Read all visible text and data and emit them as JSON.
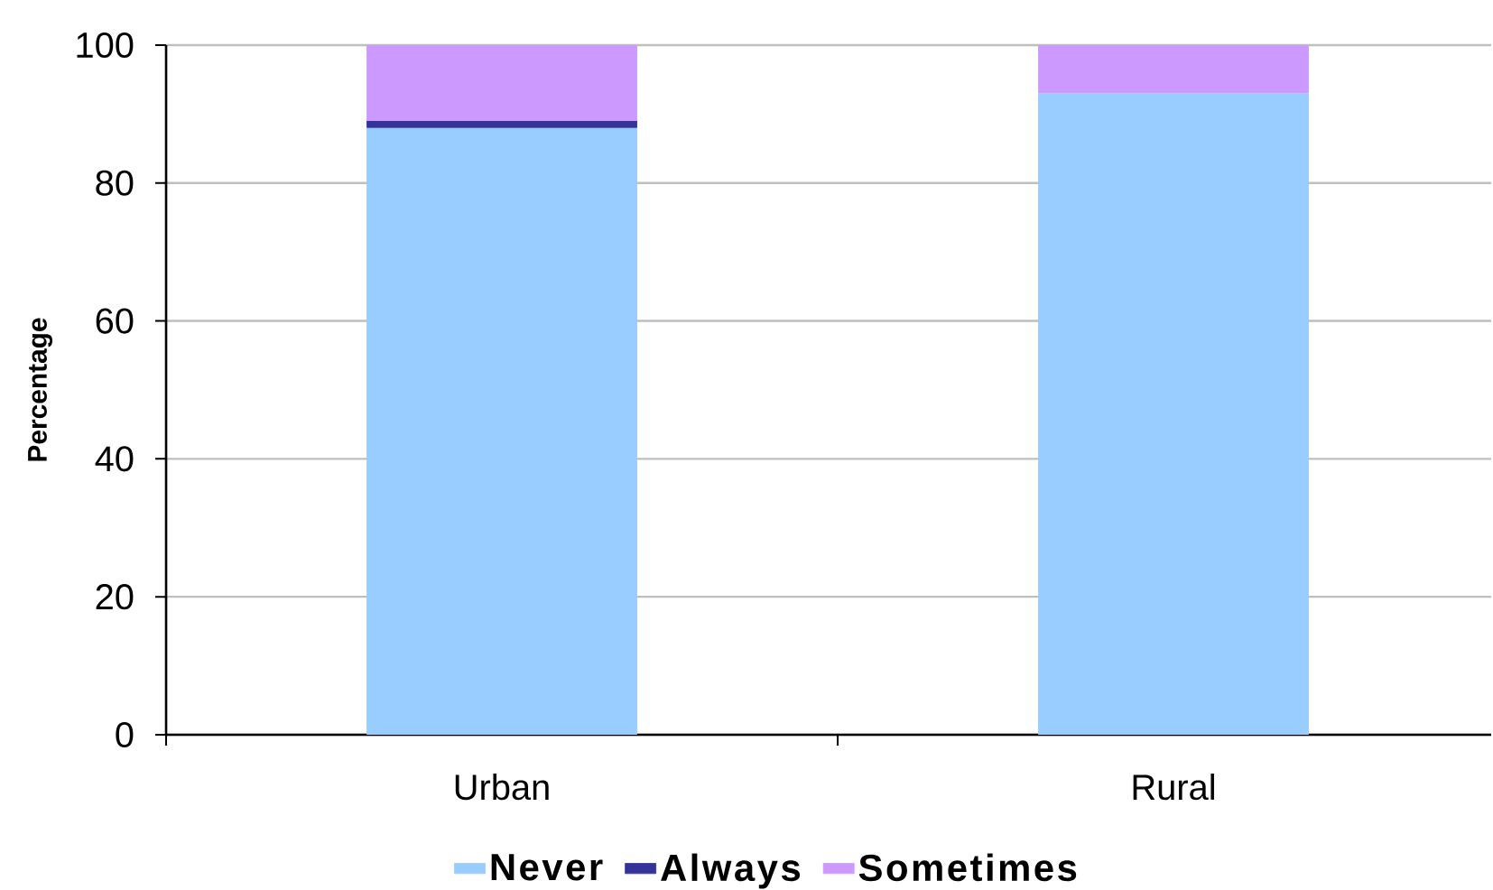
{
  "chart_data": {
    "type": "bar",
    "stacked": true,
    "categories": [
      "Urban",
      "Rural"
    ],
    "ylabel": "Percentage",
    "series": [
      {
        "name": "Never",
        "color": "#99ccff",
        "values": [
          88,
          93
        ]
      },
      {
        "name": "Always",
        "color": "#333399",
        "values": [
          1,
          null
        ]
      },
      {
        "name": "Sometimes",
        "color": "#cc99ff",
        "values": [
          11,
          7
        ]
      }
    ],
    "ylim": [
      0,
      100
    ],
    "yticks": [
      0,
      20,
      40,
      60,
      80,
      100
    ],
    "grid": "y",
    "legend": "bottom"
  }
}
